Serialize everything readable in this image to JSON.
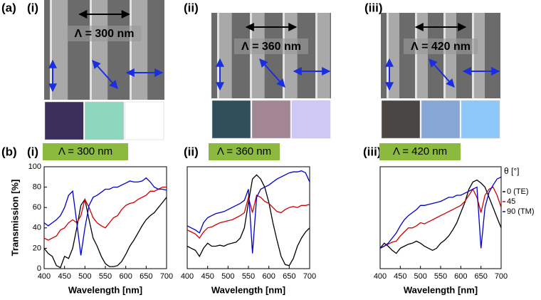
{
  "panel_a": {
    "label": "(a)",
    "images": [
      {
        "label": "(i)",
        "period": "Λ = 300 nm"
      },
      {
        "label": "(ii)",
        "period": "Λ = 360 nm"
      },
      {
        "label": "(iii)",
        "period": "Λ = 420 nm"
      }
    ]
  },
  "panel_b": {
    "label": "(b)"
  },
  "chart_data": [
    {
      "type": "line",
      "panel_label": "(i)",
      "title": "Λ = 300 nm",
      "xlabel": "Wavelength [nm]",
      "ylabel": "Transmission [%]",
      "x": [
        400,
        410,
        420,
        430,
        440,
        450,
        460,
        470,
        480,
        490,
        500,
        510,
        520,
        530,
        540,
        550,
        560,
        570,
        580,
        590,
        600,
        610,
        620,
        630,
        640,
        650,
        660,
        670,
        680,
        690,
        700
      ],
      "xlim": [
        400,
        700
      ],
      "ylim": [
        0,
        100
      ],
      "xticks": [
        400,
        450,
        500,
        550,
        600,
        650,
        700
      ],
      "yticks": [
        0,
        20,
        40,
        60,
        80,
        100
      ],
      "series": [
        {
          "color": "#000000",
          "values": [
            20,
            15,
            12,
            3,
            1,
            12,
            10,
            20,
            40,
            62,
            68,
            48,
            30,
            22,
            12,
            5,
            2,
            2,
            3,
            7,
            14,
            22,
            28,
            35,
            42,
            48,
            52,
            55,
            60,
            65,
            70
          ]
        },
        {
          "color": "#d00000",
          "values": [
            30,
            28,
            30,
            32,
            38,
            40,
            45,
            48,
            45,
            52,
            68,
            60,
            50,
            45,
            42,
            40,
            45,
            50,
            52,
            58,
            62,
            64,
            65,
            68,
            70,
            72,
            76,
            76,
            78,
            80,
            80
          ]
        },
        {
          "color": "#0000cc",
          "values": [
            45,
            42,
            45,
            48,
            52,
            60,
            72,
            76,
            45,
            13,
            40,
            62,
            70,
            72,
            75,
            78,
            78,
            80,
            80,
            82,
            84,
            86,
            85,
            85,
            86,
            89,
            85,
            80,
            78,
            78,
            77
          ]
        }
      ]
    },
    {
      "type": "line",
      "panel_label": "(ii)",
      "title": "Λ = 360 nm",
      "xlabel": "Wavelength [nm]",
      "x": [
        400,
        410,
        420,
        430,
        440,
        450,
        460,
        470,
        480,
        490,
        500,
        510,
        520,
        530,
        540,
        550,
        560,
        570,
        580,
        590,
        600,
        610,
        620,
        630,
        640,
        650,
        660,
        670,
        680,
        690,
        700
      ],
      "xlim": [
        400,
        700
      ],
      "ylim": [
        0,
        100
      ],
      "xticks": [
        400,
        450,
        500,
        550,
        600,
        650,
        700
      ],
      "series": [
        {
          "color": "#000000",
          "values": [
            22,
            20,
            18,
            12,
            20,
            25,
            22,
            22,
            23,
            22,
            24,
            25,
            26,
            30,
            40,
            65,
            88,
            92,
            88,
            80,
            65,
            45,
            28,
            12,
            4,
            3,
            10,
            22,
            30,
            36,
            40
          ]
        },
        {
          "color": "#d00000",
          "values": [
            38,
            36,
            34,
            30,
            36,
            40,
            41,
            43,
            45,
            46,
            47,
            48,
            50,
            52,
            55,
            70,
            55,
            72,
            70,
            66,
            64,
            60,
            56,
            55,
            58,
            60,
            61,
            60,
            62,
            62,
            63
          ]
        },
        {
          "color": "#0000cc",
          "values": [
            42,
            40,
            38,
            35,
            45,
            50,
            52,
            54,
            55,
            56,
            58,
            60,
            62,
            64,
            67,
            78,
            15,
            70,
            78,
            80,
            82,
            85,
            88,
            90,
            92,
            94,
            95,
            95,
            96,
            94,
            85
          ]
        }
      ]
    },
    {
      "type": "line",
      "panel_label": "(iii)",
      "title": "Λ = 420 nm",
      "xlabel": "Wavelength [nm]",
      "legend_title": "θ [°]",
      "legend": "right",
      "x": [
        400,
        410,
        420,
        430,
        440,
        450,
        460,
        470,
        480,
        490,
        500,
        510,
        520,
        530,
        540,
        550,
        560,
        570,
        580,
        590,
        600,
        610,
        620,
        630,
        640,
        650,
        660,
        670,
        680,
        690,
        700
      ],
      "xlim": [
        400,
        700
      ],
      "ylim": [
        0,
        100
      ],
      "xticks": [
        400,
        450,
        500,
        550,
        600,
        650,
        700
      ],
      "series": [
        {
          "name": "0 (TE)",
          "color": "#000000",
          "values": [
            20,
            25,
            22,
            18,
            15,
            20,
            22,
            24,
            25,
            27,
            25,
            22,
            20,
            18,
            20,
            25,
            28,
            32,
            38,
            45,
            55,
            65,
            78,
            85,
            87,
            84,
            80,
            70,
            60,
            50,
            40
          ]
        },
        {
          "name": "45",
          "color": "#d00000",
          "values": [
            20,
            22,
            24,
            26,
            27,
            32,
            36,
            40,
            40,
            42,
            45,
            44,
            46,
            48,
            50,
            52,
            54,
            56,
            58,
            60,
            62,
            66,
            72,
            78,
            70,
            55,
            72,
            78,
            80,
            72,
            60
          ]
        },
        {
          "name": "90 (TM)",
          "color": "#0000cc",
          "values": [
            20,
            22,
            25,
            30,
            35,
            42,
            48,
            52,
            55,
            58,
            62,
            62,
            63,
            64,
            65,
            66,
            68,
            70,
            70,
            72,
            72,
            74,
            76,
            78,
            80,
            20,
            60,
            75,
            82,
            88,
            90
          ]
        }
      ]
    }
  ]
}
